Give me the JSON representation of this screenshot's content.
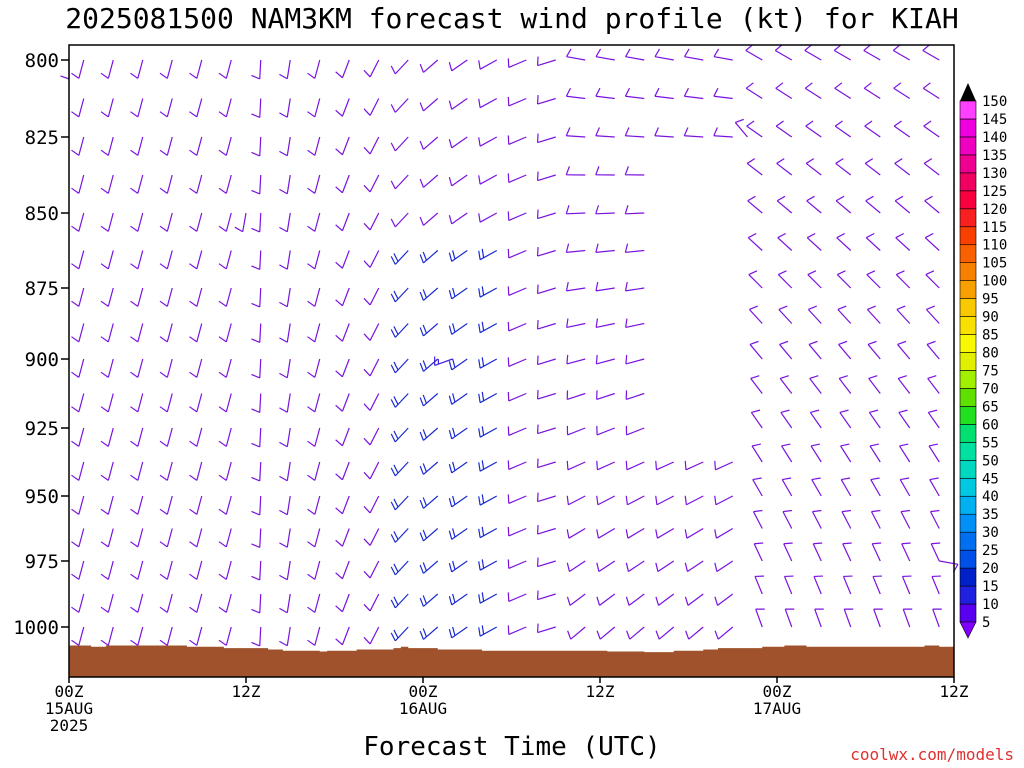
{
  "title": "2025081500 NAM3KM forecast wind profile (kt) for KIAH",
  "credit": "coolwx.com/models",
  "chart_data": {
    "type": "wind_barb_profile",
    "xlabel": "Forecast Time (UTC)",
    "ylabel": "",
    "y_axis": "pressure (mb)",
    "ylim": [
      1012,
      795
    ],
    "xlim": [
      0,
      60
    ],
    "y_ticks": [
      {
        "value": 800,
        "label": "800"
      },
      {
        "value": 825,
        "label": "825"
      },
      {
        "value": 850,
        "label": "850"
      },
      {
        "value": 875,
        "label": "875"
      },
      {
        "value": 900,
        "label": "900"
      },
      {
        "value": 925,
        "label": "925"
      },
      {
        "value": 950,
        "label": "950"
      },
      {
        "value": 975,
        "label": "975"
      },
      {
        "value": 1000,
        "label": "1000"
      }
    ],
    "x_ticks": [
      {
        "hour": 0,
        "lines": [
          "00Z",
          "15AUG",
          "2025"
        ]
      },
      {
        "hour": 12,
        "lines": [
          "12Z"
        ]
      },
      {
        "hour": 24,
        "lines": [
          "00Z",
          "16AUG"
        ]
      },
      {
        "hour": 36,
        "lines": [
          "12Z"
        ]
      },
      {
        "hour": 48,
        "lines": [
          "00Z",
          "17AUG"
        ]
      },
      {
        "hour": 60,
        "lines": [
          "12Z"
        ]
      }
    ],
    "terrain_color": "#a0522d",
    "terrain_surface_mb": [
      [
        0,
        1007
      ],
      [
        1.5,
        1007.5
      ],
      [
        2.5,
        1007
      ],
      [
        5,
        1007
      ],
      [
        8,
        1007.5
      ],
      [
        10.5,
        1008
      ],
      [
        13.5,
        1008.5
      ],
      [
        14.5,
        1009
      ],
      [
        17,
        1009.3
      ],
      [
        17.5,
        1009
      ],
      [
        19.5,
        1008.5
      ],
      [
        22,
        1008
      ],
      [
        22.5,
        1007.5
      ],
      [
        23,
        1008
      ],
      [
        25,
        1008.5
      ],
      [
        28,
        1009
      ],
      [
        36.5,
        1009.3
      ],
      [
        39,
        1009.5
      ],
      [
        41,
        1009
      ],
      [
        43,
        1008.5
      ],
      [
        44,
        1008
      ],
      [
        47,
        1007.5
      ],
      [
        48.5,
        1007
      ],
      [
        50,
        1007.5
      ],
      [
        57,
        1007.5
      ],
      [
        58,
        1007
      ],
      [
        59,
        1007.5
      ],
      [
        60,
        1007.5
      ]
    ],
    "colorbar": {
      "values": [
        5,
        10,
        15,
        20,
        25,
        30,
        35,
        40,
        45,
        50,
        55,
        60,
        65,
        70,
        75,
        80,
        85,
        90,
        95,
        100,
        105,
        110,
        115,
        120,
        125,
        130,
        135,
        140,
        145,
        150
      ],
      "colors": [
        "#8000ff",
        "#5a00f0",
        "#2020e0",
        "#0020c8",
        "#0050e8",
        "#0070f0",
        "#0090f8",
        "#00b0f0",
        "#00c8e0",
        "#00d8c0",
        "#00e0a0",
        "#00e070",
        "#20e020",
        "#60e000",
        "#a0f000",
        "#e0f000",
        "#f8f800",
        "#f8e000",
        "#f8c800",
        "#f8a000",
        "#f88000",
        "#f86000",
        "#f84000",
        "#f82020",
        "#f80040",
        "#f00060",
        "#f00090",
        "#f000c0",
        "#f000e0",
        "#ff40ff"
      ]
    },
    "series": [
      {
        "hour": 0,
        "level_mb": 800,
        "direction_deg": 180,
        "speed_kt": 10
      },
      {
        "hour": 12,
        "level_mb": 850,
        "direction_deg": 190,
        "speed_kt": 10
      },
      {
        "hour": 26,
        "level_mb": 900,
        "direction_deg": 250,
        "speed_kt": 15
      },
      {
        "hour": 46,
        "level_mb": 825,
        "direction_deg": 320,
        "speed_kt": 10
      },
      {
        "hour": 59,
        "level_mb": 975,
        "direction_deg": 100,
        "speed_kt": 10
      }
    ]
  }
}
